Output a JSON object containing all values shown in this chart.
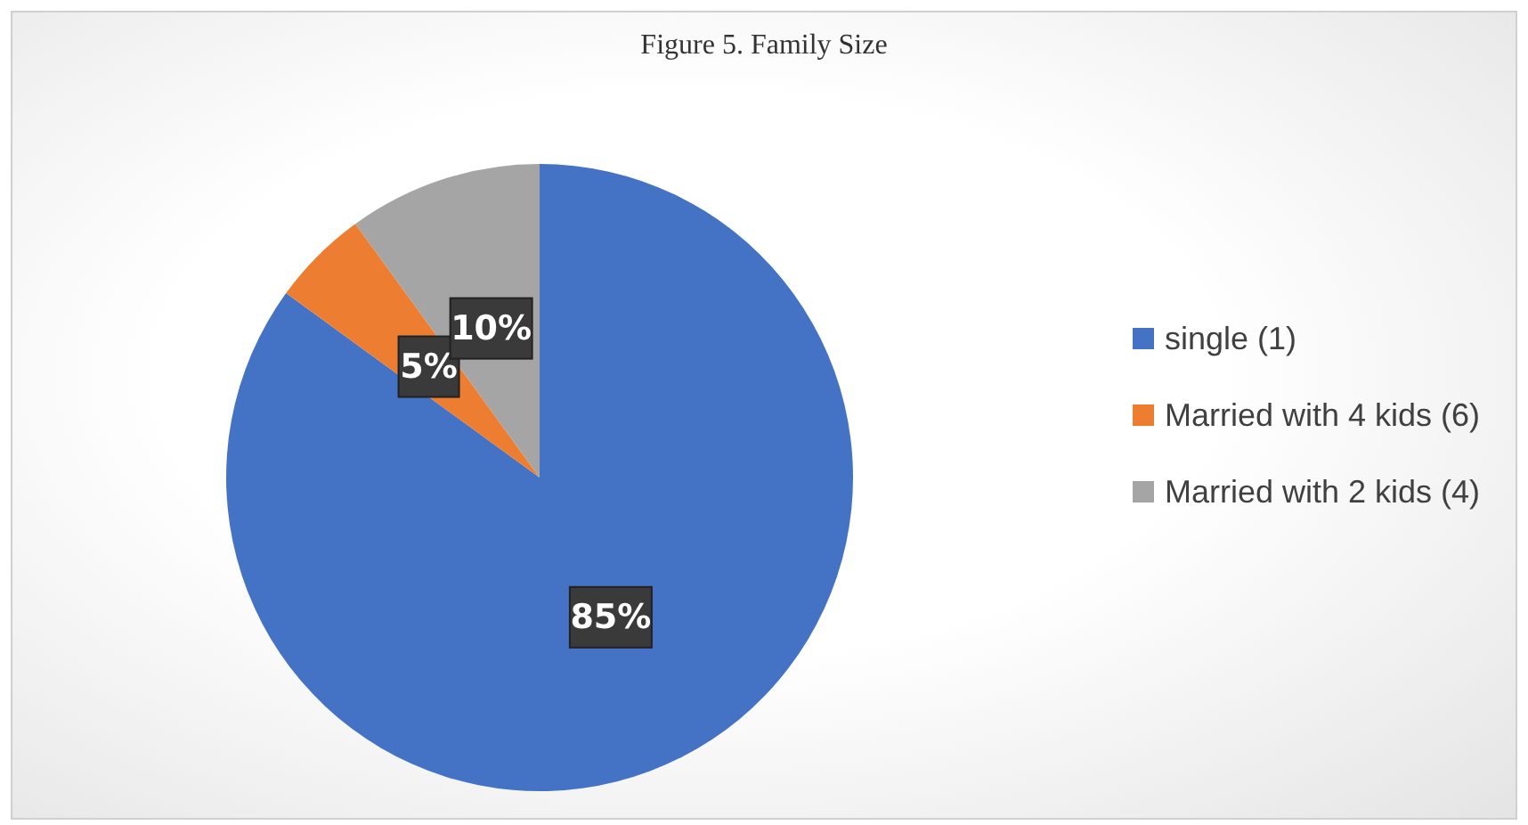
{
  "chart_data": {
    "type": "pie",
    "title": "Figure 5. Family Size",
    "categories": [
      "single (1)",
      "Married with 4 kids (6)",
      "Married with 2 kids (4)"
    ],
    "values": [
      85,
      5,
      10
    ],
    "colors": [
      "#4472c4",
      "#ed7d31",
      "#a5a5a5"
    ],
    "value_labels": [
      "85%",
      "5%",
      "10%"
    ],
    "legend": "right"
  }
}
